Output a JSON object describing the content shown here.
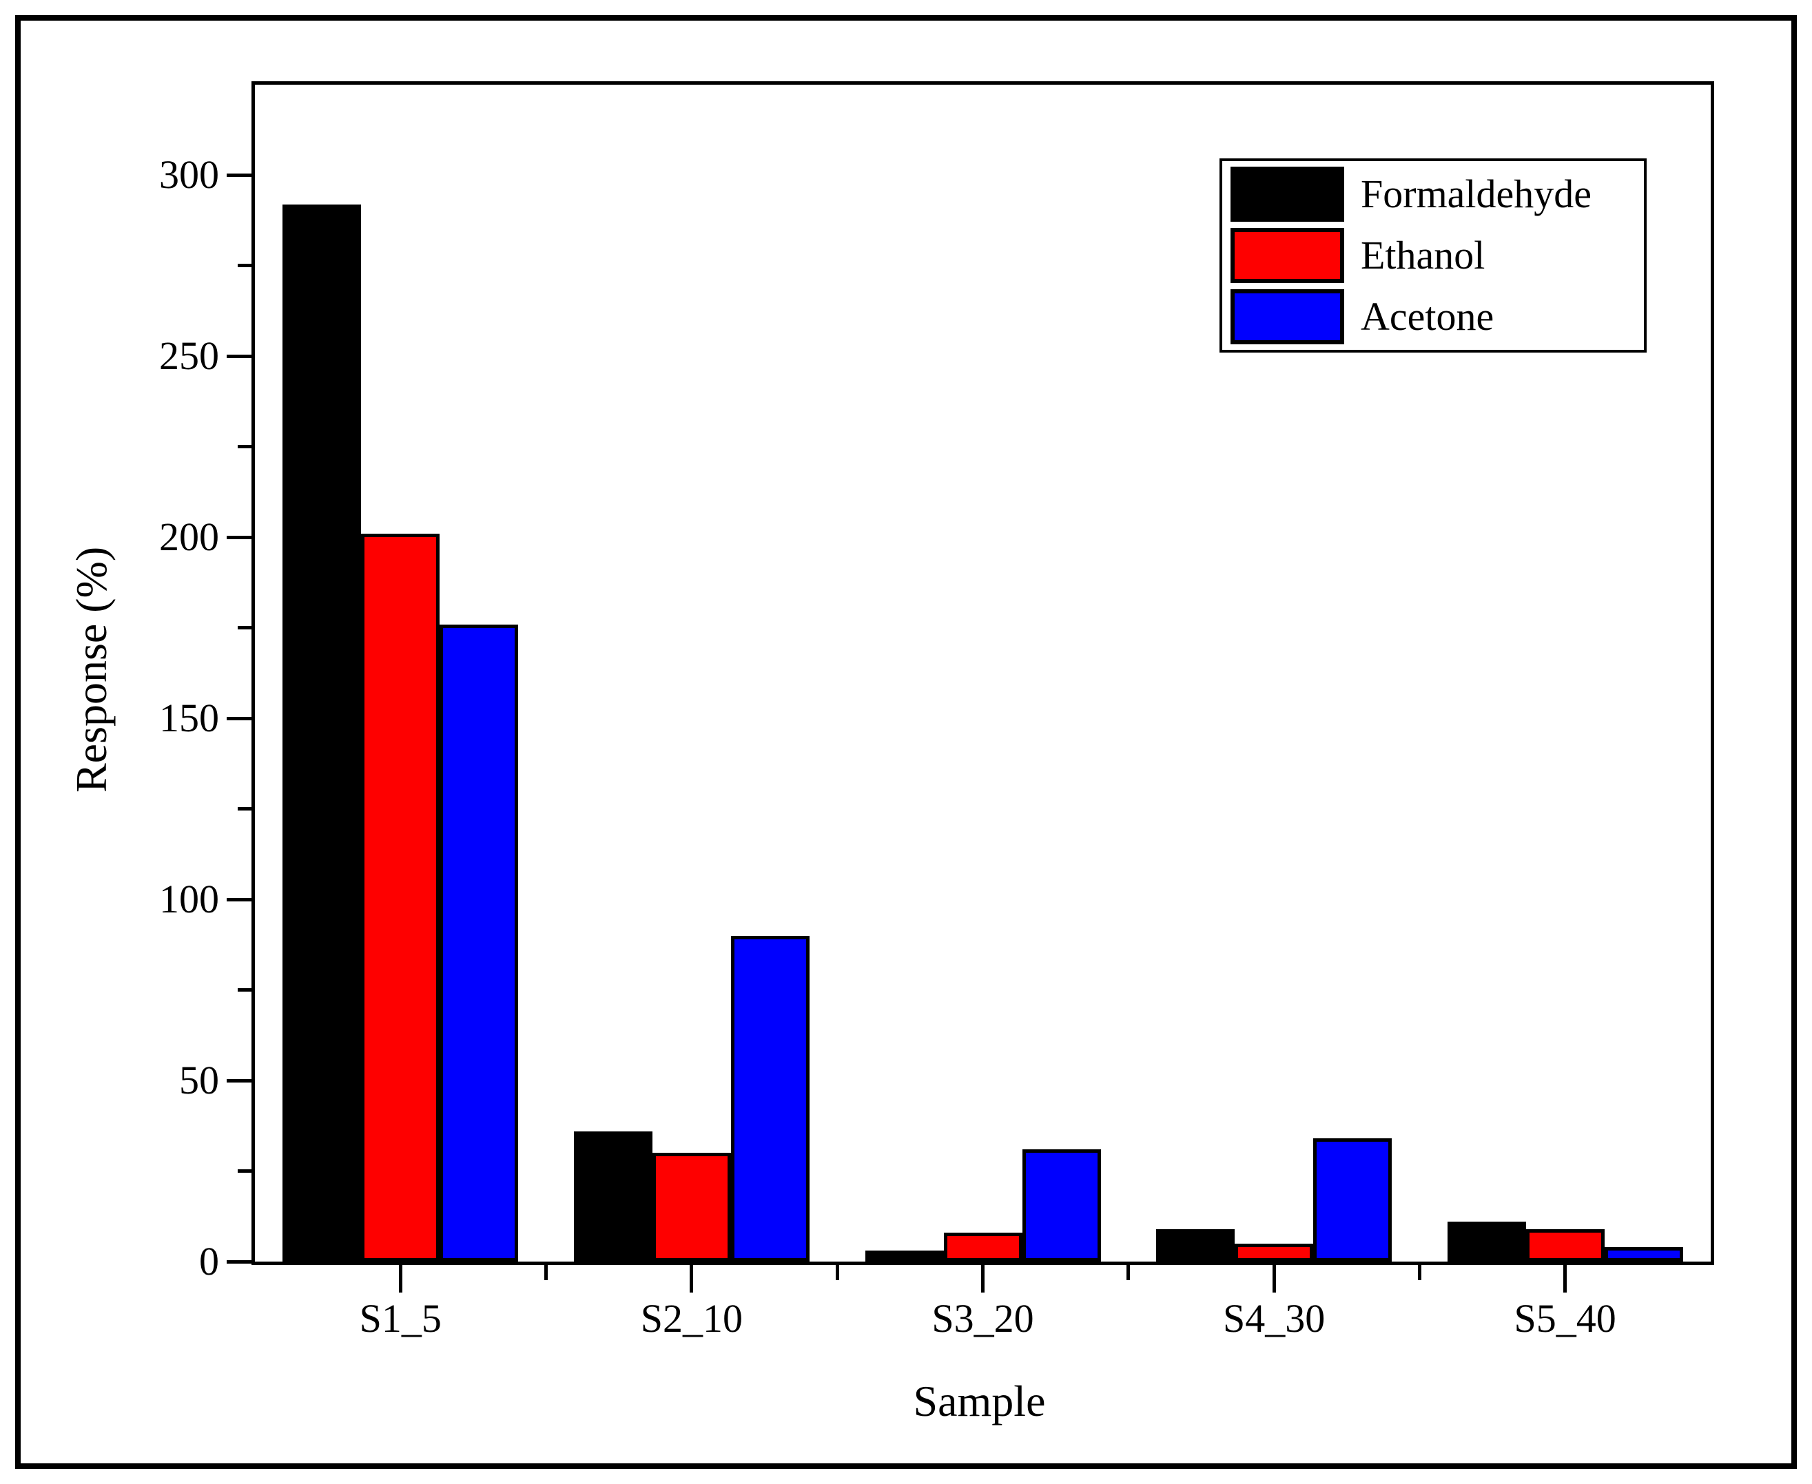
{
  "chart_data": {
    "type": "bar",
    "title": "",
    "xlabel": "Sample",
    "ylabel": "Response (%)",
    "categories": [
      "S1_5",
      "S2_10",
      "S3_20",
      "S4_30",
      "S5_40"
    ],
    "series": [
      {
        "name": "Formaldehyde",
        "color": "#000000",
        "values": [
          292,
          36,
          3,
          9,
          11
        ]
      },
      {
        "name": "Ethanol",
        "color": "#fe0000",
        "values": [
          201,
          30,
          8,
          5,
          9
        ]
      },
      {
        "name": "Acetone",
        "color": "#0000fe",
        "values": [
          176,
          90,
          31,
          34,
          4
        ]
      }
    ],
    "ylim": [
      0,
      325
    ],
    "y_major_ticks": [
      0,
      50,
      100,
      150,
      200,
      250,
      300
    ],
    "y_minor_step": 25,
    "grid": "off",
    "legend_position": "top-right",
    "legend_entries": [
      "Formaldehyde",
      "Ethanol",
      "Acetone"
    ]
  },
  "colors": {
    "axis": "#000000",
    "background": "#ffffff"
  }
}
